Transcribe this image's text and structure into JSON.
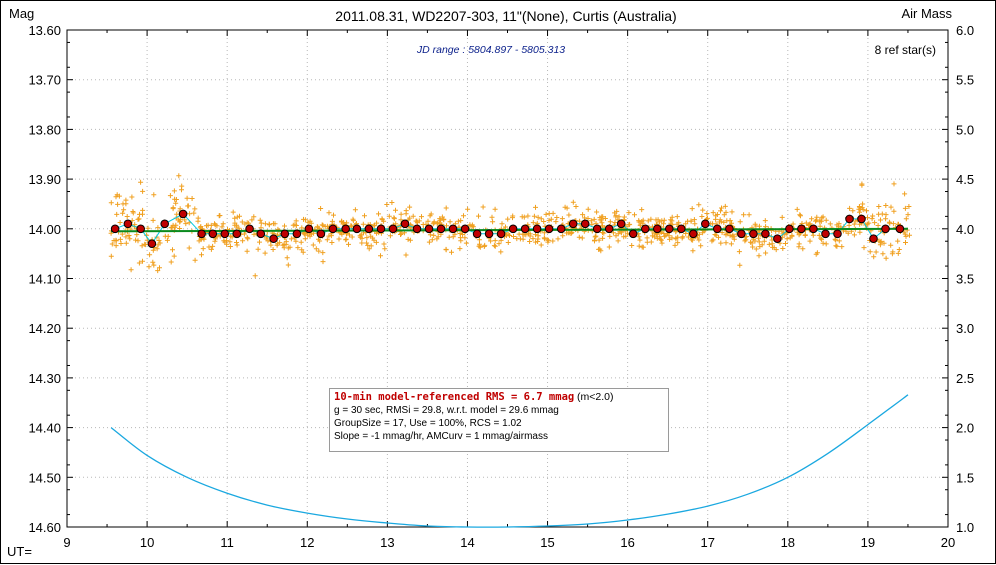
{
  "chart_data": {
    "type": "scatter",
    "title": "2011.08.31, WD2207-303, 11\"(None), Curtis (Australia)",
    "ylabel_left": "Mag",
    "ylabel_right": "Air Mass",
    "xlabel": "UT=",
    "xlim": [
      9,
      20
    ],
    "ylim_left": [
      14.6,
      13.6
    ],
    "ylim_right": [
      1.0,
      6.0
    ],
    "x_ticks": [
      "9",
      "10",
      "11",
      "12",
      "13",
      "14",
      "15",
      "16",
      "17",
      "18",
      "19",
      "20"
    ],
    "y_ticks_left": [
      "13.60",
      "13.70",
      "13.80",
      "13.90",
      "14.00",
      "14.10",
      "14.20",
      "14.30",
      "14.40",
      "14.50",
      "14.60"
    ],
    "y_ticks_right": [
      "6.0",
      "5.5",
      "5.0",
      "4.5",
      "4.0",
      "3.5",
      "3.0",
      "2.5",
      "2.0",
      "1.5",
      "1.0"
    ],
    "jd_range": "JD range : 5804.897 - 5805.313",
    "ref_stars": "8 ref star(s)",
    "colors": {
      "raw_points": "#f0a020",
      "binned_points_fill": "#c00000",
      "model_line": "#0a8a1e",
      "running_mean": "#00c8e0",
      "airmass": "#1aa8e0"
    },
    "series": [
      {
        "kind": "binned",
        "x": [
          9.6,
          9.76,
          9.92,
          10.06,
          10.22,
          10.45,
          10.68,
          10.82,
          10.97,
          11.12,
          11.28,
          11.42,
          11.58,
          11.72,
          11.87,
          12.02,
          12.17,
          12.32,
          12.48,
          12.62,
          12.77,
          12.92,
          13.07,
          13.22,
          13.37,
          13.52,
          13.67,
          13.82,
          13.97,
          14.12,
          14.27,
          14.42,
          14.57,
          14.72,
          14.87,
          15.02,
          15.17,
          15.32,
          15.47,
          15.62,
          15.77,
          15.92,
          16.07,
          16.22,
          16.37,
          16.52,
          16.67,
          16.82,
          16.97,
          17.12,
          17.27,
          17.42,
          17.57,
          17.72,
          17.87,
          18.02,
          18.17,
          18.32,
          18.47,
          18.62,
          18.77,
          18.92,
          19.07,
          19.22,
          19.4
        ],
        "y": [
          14.0,
          13.99,
          14.0,
          14.03,
          13.99,
          13.97,
          14.01,
          14.01,
          14.01,
          14.01,
          14.0,
          14.01,
          14.02,
          14.01,
          14.01,
          14.0,
          14.01,
          14.0,
          14.0,
          14.0,
          14.0,
          14.0,
          14.0,
          13.99,
          14.0,
          14.0,
          14.0,
          14.0,
          14.0,
          14.01,
          14.01,
          14.01,
          14.0,
          14.0,
          14.0,
          14.0,
          14.0,
          13.99,
          13.99,
          14.0,
          14.0,
          13.99,
          14.01,
          14.0,
          14.0,
          14.0,
          14.0,
          14.01,
          13.99,
          14.0,
          14.0,
          14.01,
          14.01,
          14.01,
          14.02,
          14.0,
          14.0,
          14.0,
          14.01,
          14.01,
          13.98,
          13.98,
          14.02,
          14.0,
          14.0
        ]
      },
      {
        "kind": "model",
        "x": [
          9.55,
          19.5
        ],
        "y": [
          14.005,
          14.0
        ]
      },
      {
        "kind": "airmass",
        "x": [
          9.55,
          10.0,
          10.5,
          11.0,
          11.5,
          12.0,
          12.5,
          13.0,
          13.5,
          14.0,
          14.5,
          15.0,
          15.5,
          16.0,
          16.5,
          17.0,
          17.5,
          18.0,
          18.5,
          19.0,
          19.5
        ],
        "y": [
          2.0,
          1.72,
          1.5,
          1.34,
          1.22,
          1.14,
          1.08,
          1.04,
          1.01,
          1.0,
          1.0,
          1.01,
          1.03,
          1.07,
          1.13,
          1.21,
          1.33,
          1.5,
          1.74,
          2.03,
          2.33
        ]
      }
    ],
    "raw_points_note": "",
    "stats": {
      "rms_line": "10-min model-referenced RMS = 6.7 mmag",
      "rms_note": "(m<2.0)",
      "line1": "g = 30 sec, RMSi = 29.8, w.r.t. model = 29.6 mmag",
      "line2": "GroupSize = 17, Use = 100%, RCS = 1.02",
      "line3": "Slope = -1 mmag/hr, AMCurv = 1 mmag/airmass"
    }
  }
}
